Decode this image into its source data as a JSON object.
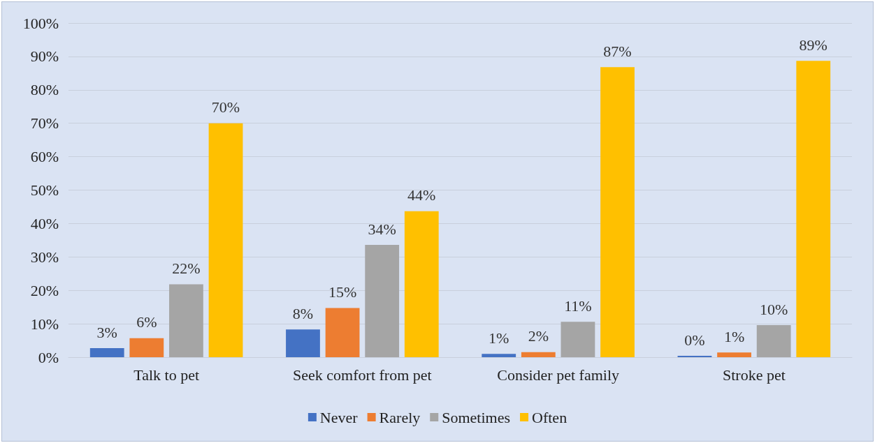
{
  "chart_data": {
    "type": "bar",
    "categories": [
      "Talk to pet",
      "Seek comfort from pet",
      "Consider pet family",
      "Stroke pet"
    ],
    "series": [
      {
        "name": "Never",
        "color": "#4472c4",
        "values": [
          2.7,
          8.3,
          1.0,
          0.4
        ],
        "value_labels": [
          "3%",
          "8%",
          "1%",
          "0%"
        ]
      },
      {
        "name": "Rarely",
        "color": "#ed7d31",
        "values": [
          5.7,
          14.7,
          1.5,
          1.4
        ],
        "value_labels": [
          "6%",
          "15%",
          "2%",
          "1%"
        ]
      },
      {
        "name": "Sometimes",
        "color": "#a5a5a5",
        "values": [
          21.8,
          33.6,
          10.6,
          9.6
        ],
        "value_labels": [
          "22%",
          "34%",
          "11%",
          "10%"
        ]
      },
      {
        "name": "Often",
        "color": "#ffc000",
        "values": [
          70,
          43.7,
          86.8,
          88.7
        ],
        "value_labels": [
          "70%",
          "44%",
          "87%",
          "89%"
        ]
      }
    ],
    "ylim": [
      0,
      100
    ],
    "yticks": [
      {
        "value": 0,
        "label": "0%"
      },
      {
        "value": 10,
        "label": "10%"
      },
      {
        "value": 20,
        "label": "20%"
      },
      {
        "value": 30,
        "label": "30%"
      },
      {
        "value": 40,
        "label": "40%"
      },
      {
        "value": 50,
        "label": "50%"
      },
      {
        "value": 60,
        "label": "60%"
      },
      {
        "value": 70,
        "label": "70%"
      },
      {
        "value": 80,
        "label": "80%"
      },
      {
        "value": 90,
        "label": "90%"
      },
      {
        "value": 100,
        "label": "100%"
      }
    ],
    "grid": "y",
    "legend": "bottom"
  }
}
